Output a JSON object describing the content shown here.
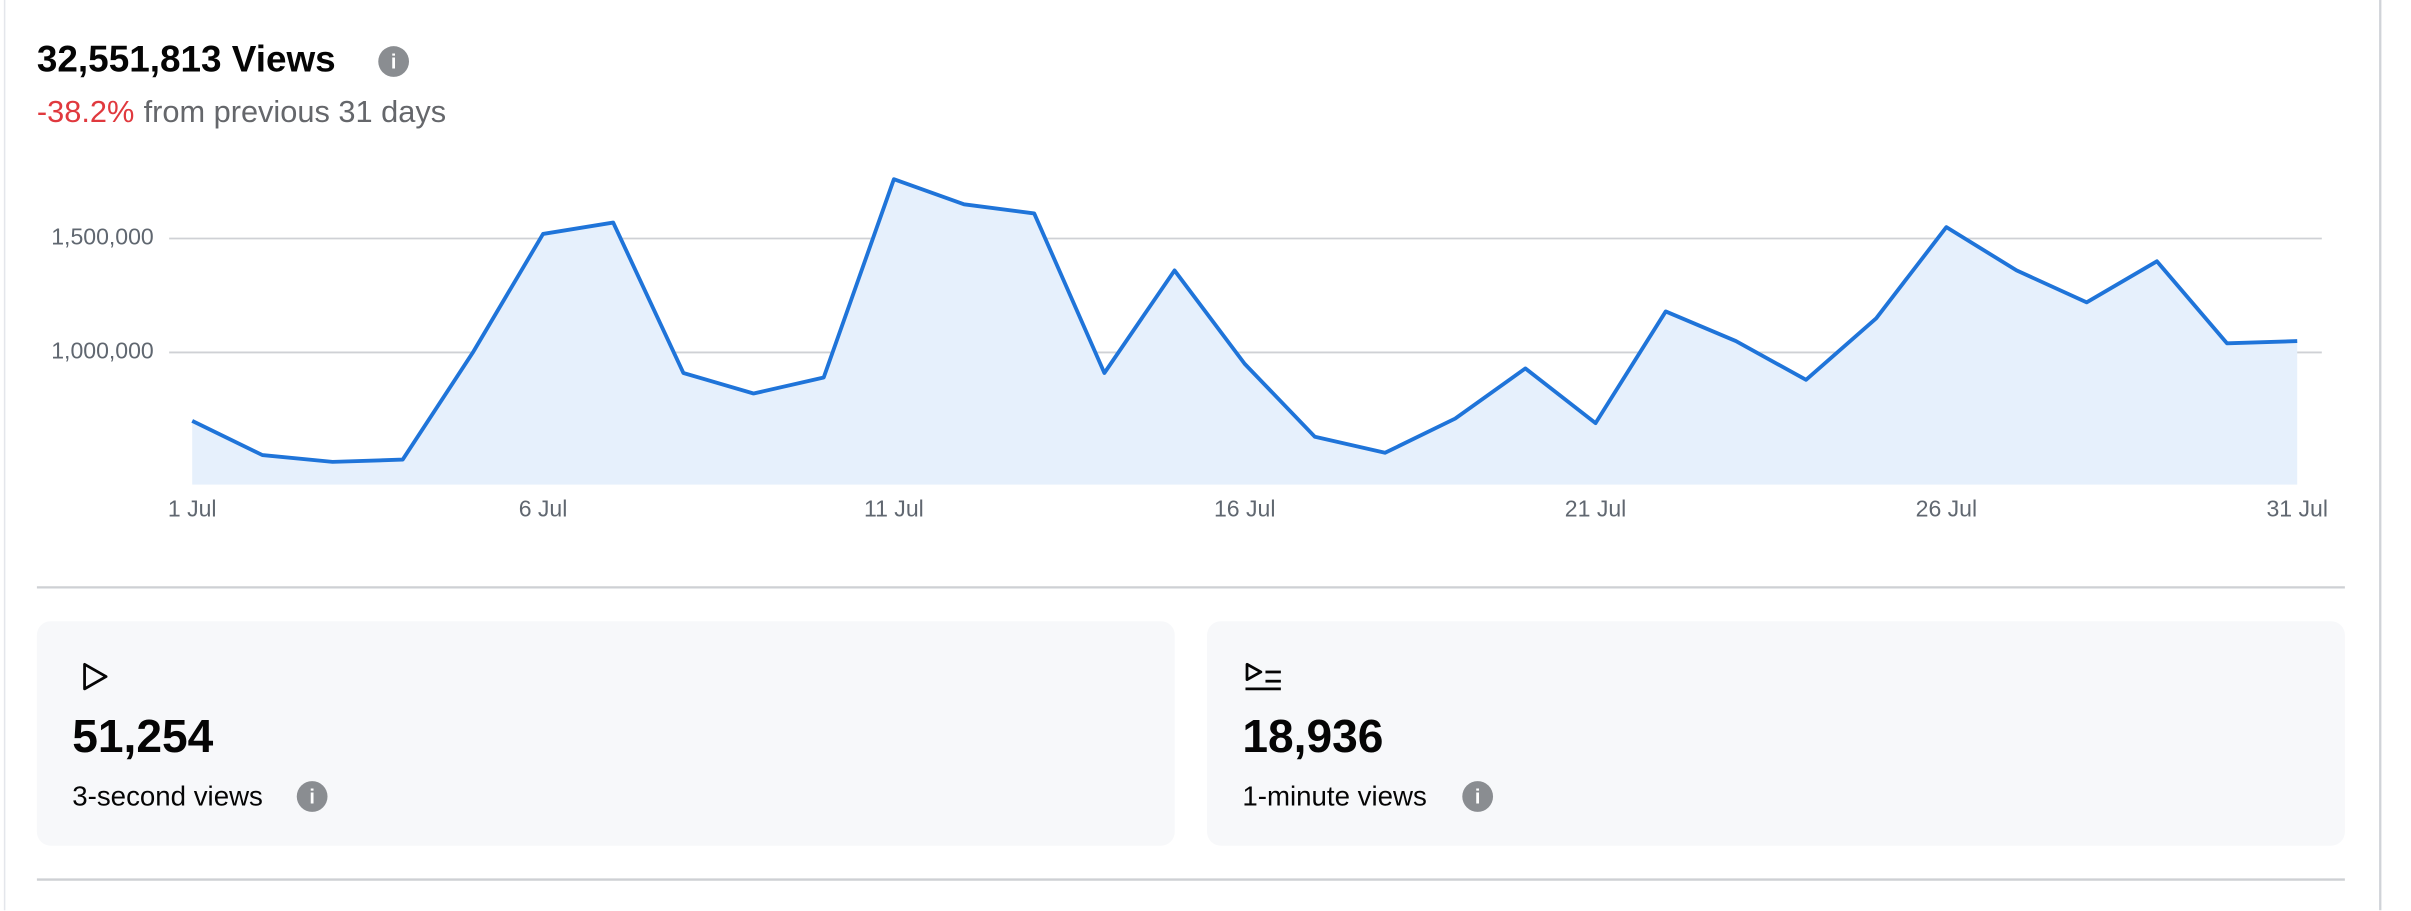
{
  "header": {
    "title": "32,551,813 Views",
    "change": "-38.2%",
    "change_note": "from previous 31 days"
  },
  "chart_data": {
    "type": "line",
    "categories": [
      "1 Jul",
      null,
      null,
      null,
      null,
      "6 Jul",
      null,
      null,
      null,
      null,
      "11 Jul",
      null,
      null,
      null,
      null,
      "16 Jul",
      null,
      null,
      null,
      null,
      "21 Jul",
      null,
      null,
      null,
      null,
      "26 Jul",
      null,
      null,
      null,
      null,
      "31 Jul"
    ],
    "series": [
      {
        "name": "Views",
        "color": "#1f74d9",
        "values": [
          700000,
          550000,
          520000,
          530000,
          1000000,
          1520000,
          1570000,
          910000,
          820000,
          890000,
          1760000,
          1650000,
          1610000,
          910000,
          1360000,
          950000,
          630000,
          560000,
          710000,
          930000,
          690000,
          1180000,
          1050000,
          880000,
          1150000,
          1550000,
          1360000,
          1220000,
          1400000,
          1040000,
          1050000
        ]
      }
    ],
    "ylim": [
      420000,
      1900000
    ],
    "yticks": [
      {
        "value": 1000000,
        "label": "1,000,000"
      },
      {
        "value": 1500000,
        "label": "1,500,000"
      }
    ],
    "grid": true,
    "fill": "#e6f0fc"
  },
  "cards": [
    {
      "value": "51,254",
      "label": "3-second views"
    },
    {
      "value": "18,936",
      "label": "1-minute views"
    }
  ]
}
